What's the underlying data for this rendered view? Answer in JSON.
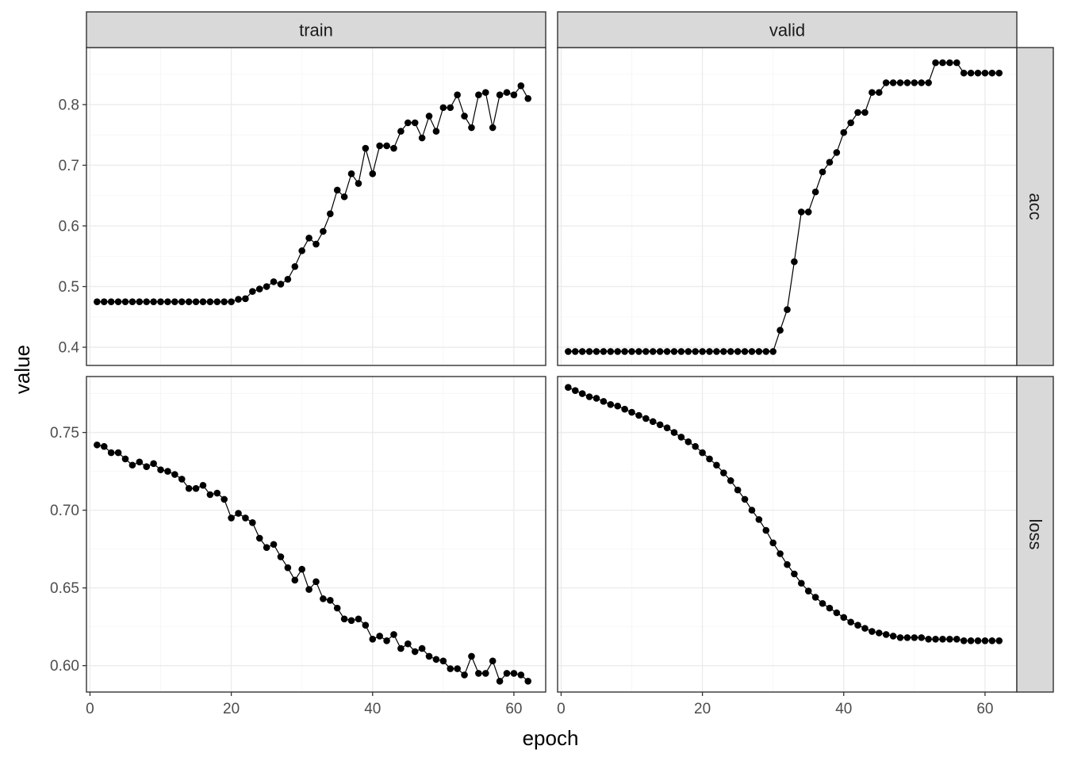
{
  "chart_data": {
    "type": "line",
    "xlabel": "epoch",
    "ylabel": "value",
    "facet_columns": [
      "train",
      "valid"
    ],
    "facet_rows": [
      "acc",
      "loss"
    ],
    "x": [
      1,
      2,
      3,
      4,
      5,
      6,
      7,
      8,
      9,
      10,
      11,
      12,
      13,
      14,
      15,
      16,
      17,
      18,
      19,
      20,
      21,
      22,
      23,
      24,
      25,
      26,
      27,
      28,
      29,
      30,
      31,
      32,
      33,
      34,
      35,
      36,
      37,
      38,
      39,
      40,
      41,
      42,
      43,
      44,
      45,
      46,
      47,
      48,
      49,
      50,
      51,
      52,
      53,
      54,
      55,
      56,
      57,
      58,
      59,
      60,
      61,
      62
    ],
    "xlim": [
      -0.5,
      64.5
    ],
    "x_ticks": [
      0,
      20,
      40,
      60
    ],
    "x_tick_labels": [
      "0",
      "20",
      "40",
      "60"
    ],
    "rows": [
      {
        "name": "acc",
        "ylim": [
          0.37,
          0.894
        ],
        "y_ticks": [
          0.4,
          0.5,
          0.6,
          0.7,
          0.8
        ],
        "y_tick_labels": [
          "0.4",
          "0.5",
          "0.6",
          "0.7",
          "0.8"
        ],
        "y_minor": [
          0.45,
          0.55,
          0.65,
          0.75,
          0.85
        ]
      },
      {
        "name": "loss",
        "ylim": [
          0.583,
          0.786
        ],
        "y_ticks": [
          0.6,
          0.65,
          0.7,
          0.75
        ],
        "y_tick_labels": [
          "0.60",
          "0.65",
          "0.70",
          "0.75"
        ],
        "y_minor": [
          0.625,
          0.675,
          0.725,
          0.775
        ]
      }
    ],
    "panels": [
      {
        "column": "train",
        "row": "acc",
        "values": [
          0.475,
          0.475,
          0.475,
          0.475,
          0.475,
          0.475,
          0.475,
          0.475,
          0.475,
          0.475,
          0.475,
          0.475,
          0.475,
          0.475,
          0.475,
          0.475,
          0.475,
          0.475,
          0.475,
          0.475,
          0.479,
          0.48,
          0.492,
          0.496,
          0.5,
          0.508,
          0.504,
          0.512,
          0.533,
          0.559,
          0.58,
          0.57,
          0.591,
          0.62,
          0.659,
          0.648,
          0.686,
          0.67,
          0.728,
          0.686,
          0.732,
          0.732,
          0.728,
          0.756,
          0.77,
          0.77,
          0.745,
          0.781,
          0.756,
          0.795,
          0.795,
          0.816,
          0.781,
          0.762,
          0.816,
          0.82,
          0.762,
          0.816,
          0.82,
          0.816,
          0.831,
          0.81
        ]
      },
      {
        "column": "valid",
        "row": "acc",
        "values": [
          0.393,
          0.393,
          0.393,
          0.393,
          0.393,
          0.393,
          0.393,
          0.393,
          0.393,
          0.393,
          0.393,
          0.393,
          0.393,
          0.393,
          0.393,
          0.393,
          0.393,
          0.393,
          0.393,
          0.393,
          0.393,
          0.393,
          0.393,
          0.393,
          0.393,
          0.393,
          0.393,
          0.393,
          0.393,
          0.393,
          0.428,
          0.462,
          0.541,
          0.623,
          0.623,
          0.656,
          0.689,
          0.705,
          0.721,
          0.754,
          0.77,
          0.787,
          0.787,
          0.82,
          0.82,
          0.836,
          0.836,
          0.836,
          0.836,
          0.836,
          0.836,
          0.836,
          0.869,
          0.869,
          0.869,
          0.869,
          0.852,
          0.852,
          0.852,
          0.852,
          0.852,
          0.852
        ]
      },
      {
        "column": "train",
        "row": "loss",
        "values": [
          0.742,
          0.741,
          0.737,
          0.737,
          0.733,
          0.729,
          0.731,
          0.728,
          0.73,
          0.726,
          0.725,
          0.723,
          0.72,
          0.714,
          0.714,
          0.716,
          0.71,
          0.711,
          0.707,
          0.695,
          0.698,
          0.695,
          0.692,
          0.682,
          0.676,
          0.678,
          0.67,
          0.663,
          0.655,
          0.662,
          0.649,
          0.654,
          0.643,
          0.642,
          0.637,
          0.63,
          0.629,
          0.63,
          0.626,
          0.617,
          0.619,
          0.616,
          0.62,
          0.611,
          0.614,
          0.609,
          0.611,
          0.606,
          0.604,
          0.603,
          0.598,
          0.598,
          0.594,
          0.606,
          0.595,
          0.595,
          0.603,
          0.59,
          0.595,
          0.595,
          0.594,
          0.59
        ]
      },
      {
        "column": "valid",
        "row": "loss",
        "values": [
          0.779,
          0.777,
          0.775,
          0.773,
          0.772,
          0.77,
          0.768,
          0.767,
          0.765,
          0.763,
          0.761,
          0.759,
          0.757,
          0.755,
          0.753,
          0.75,
          0.747,
          0.744,
          0.741,
          0.737,
          0.733,
          0.729,
          0.724,
          0.719,
          0.713,
          0.707,
          0.7,
          0.694,
          0.687,
          0.679,
          0.672,
          0.665,
          0.659,
          0.653,
          0.648,
          0.644,
          0.64,
          0.637,
          0.634,
          0.631,
          0.628,
          0.626,
          0.624,
          0.622,
          0.621,
          0.62,
          0.619,
          0.618,
          0.618,
          0.618,
          0.618,
          0.617,
          0.617,
          0.617,
          0.617,
          0.617,
          0.616,
          0.616,
          0.616,
          0.616,
          0.616,
          0.616
        ]
      }
    ]
  }
}
